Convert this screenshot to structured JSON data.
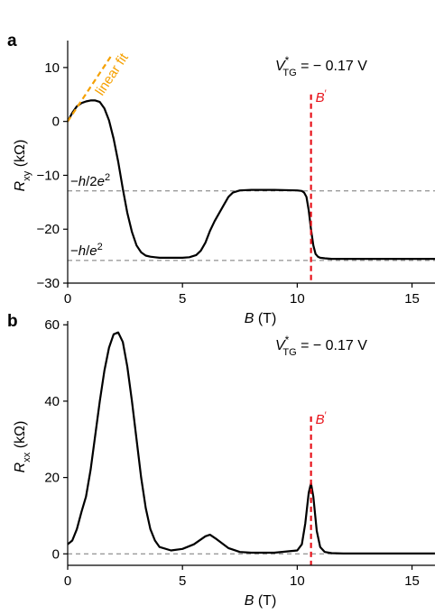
{
  "chart_data": [
    {
      "panel": "a",
      "type": "line",
      "xlabel": "B",
      "xlabel_unit": "(T)",
      "ylabel_main": "R",
      "ylabel_sub": "xy",
      "ylabel_unit": "(kΩ)",
      "xlim": [
        0,
        16
      ],
      "ylim": [
        -30,
        15
      ],
      "xticks": [
        0,
        5,
        10,
        15
      ],
      "yticks": [
        10,
        0,
        -10,
        -20,
        -30
      ],
      "ytick_labels": [
        "10",
        "0",
        "−10",
        "−20",
        "−30"
      ],
      "gate_label": {
        "sym": "V",
        "sup": "*",
        "sub": "TG",
        "value": " = − 0.17 V"
      },
      "series": [
        {
          "color": "#000000",
          "x": [
            0,
            0.2,
            0.4,
            0.6,
            0.8,
            1.0,
            1.2,
            1.4,
            1.6,
            1.8,
            2.0,
            2.2,
            2.4,
            2.6,
            2.8,
            3.0,
            3.2,
            3.4,
            3.6,
            3.8,
            4.0,
            4.5,
            5.0,
            5.3,
            5.6,
            5.8,
            6.0,
            6.2,
            6.4,
            6.6,
            6.8,
            7.0,
            7.2,
            7.5,
            8.0,
            9.0,
            10.0,
            10.2,
            10.3,
            10.4,
            10.5,
            10.6,
            10.7,
            10.8,
            10.9,
            11.0,
            11.2,
            11.5,
            12.0,
            13.0,
            14.0,
            15.0,
            16.0
          ],
          "y": [
            0,
            1.6,
            2.8,
            3.4,
            3.7,
            3.9,
            3.9,
            3.6,
            2.4,
            0.2,
            -3.2,
            -7.5,
            -12.5,
            -17.0,
            -20.5,
            -23.0,
            -24.3,
            -24.9,
            -25.1,
            -25.2,
            -25.3,
            -25.3,
            -25.3,
            -25.2,
            -24.8,
            -24.0,
            -22.5,
            -20.3,
            -18.5,
            -17.0,
            -15.5,
            -14.0,
            -13.2,
            -12.8,
            -12.7,
            -12.7,
            -12.8,
            -12.9,
            -13.2,
            -14.0,
            -16.5,
            -20.0,
            -23.0,
            -24.6,
            -25.1,
            -25.3,
            -25.4,
            -25.5,
            -25.5,
            -25.5,
            -25.5,
            -25.5,
            -25.5
          ]
        },
        {
          "name": "linear fit",
          "color": "#f5a000",
          "dashed": true,
          "x": [
            0,
            1.95
          ],
          "y": [
            0,
            12.5
          ]
        }
      ],
      "hlines": [
        {
          "y": -12.9,
          "label_sym": "h",
          "label_pre": "−",
          "label_mid": "/2",
          "label_e": "e",
          "label_pow": "2"
        },
        {
          "y": -25.8,
          "label_sym": "h",
          "label_pre": "−",
          "label_mid": "/",
          "label_e": "e",
          "label_pow": "2"
        }
      ],
      "vline": {
        "x": 10.6,
        "y_top": 5,
        "label": "B",
        "label_sup": "′",
        "color": "#e8141c"
      }
    },
    {
      "panel": "b",
      "type": "line",
      "xlabel": "B",
      "xlabel_unit": "(T)",
      "ylabel_main": "R",
      "ylabel_sub": "xx",
      "ylabel_unit": "(kΩ)",
      "xlim": [
        0,
        16
      ],
      "ylim": [
        -3,
        61
      ],
      "xticks": [
        0,
        5,
        10,
        15
      ],
      "yticks": [
        0,
        20,
        40,
        60
      ],
      "ytick_labels": [
        "0",
        "20",
        "40",
        "60"
      ],
      "gate_label": {
        "sym": "V",
        "sup": "*",
        "sub": "TG",
        "value": " = − 0.17 V"
      },
      "series": [
        {
          "color": "#000000",
          "x": [
            0,
            0.2,
            0.4,
            0.6,
            0.8,
            1.0,
            1.2,
            1.4,
            1.6,
            1.8,
            2.0,
            2.2,
            2.4,
            2.6,
            2.8,
            3.0,
            3.2,
            3.4,
            3.6,
            3.8,
            4.0,
            4.5,
            5.0,
            5.5,
            6.0,
            6.2,
            6.5,
            7.0,
            7.5,
            8.0,
            9.0,
            10.0,
            10.2,
            10.35,
            10.5,
            10.6,
            10.7,
            10.85,
            11.0,
            11.2,
            11.5,
            12.0,
            13.0,
            14.0,
            15.0,
            16.0
          ],
          "y": [
            2.5,
            3.5,
            6.5,
            11,
            15,
            22,
            31,
            40,
            48,
            54,
            57.5,
            58.0,
            55.5,
            49,
            40,
            30,
            20,
            12,
            6.5,
            3.5,
            1.8,
            0.9,
            1.3,
            2.5,
            4.6,
            5.0,
            3.8,
            1.5,
            0.5,
            0.3,
            0.3,
            0.9,
            2.5,
            8,
            16,
            18.5,
            15,
            6,
            1.8,
            0.5,
            0.2,
            0.1,
            0.1,
            0.1,
            0.1,
            0.1
          ]
        }
      ],
      "hlines": [
        {
          "y": 0
        }
      ],
      "vline": {
        "x": 10.6,
        "y_top": 36,
        "label": "B",
        "label_sup": "′",
        "color": "#e8141c"
      }
    }
  ]
}
